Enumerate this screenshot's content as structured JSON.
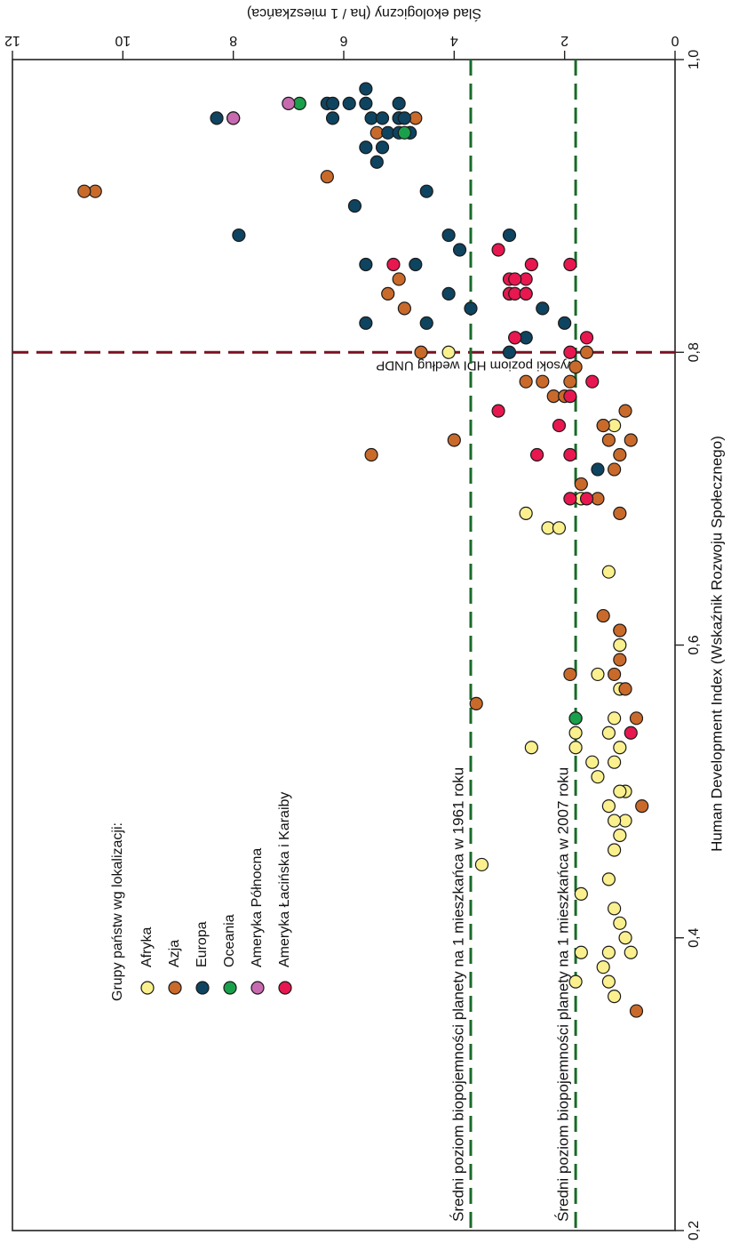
{
  "chart_data": {
    "type": "scatter",
    "orientation": "rotated 90 degrees clockwise (HDI axis along the right edge, footprint axis along the top)",
    "xlabel": "Human Development Index (Wskaźnik Rozwoju Społecznego)",
    "ylabel": "Ślad ekologiczny (ha / 1 mieszkańca)",
    "xlim": [
      0.2,
      1.0
    ],
    "ylim": [
      0,
      12
    ],
    "x_ticks": [
      "0,2",
      "0,4",
      "0,6",
      "0,8",
      "1,0"
    ],
    "y_ticks": [
      "0",
      "2",
      "4",
      "6",
      "8",
      "10",
      "12"
    ],
    "grid": false,
    "legend": {
      "title": "Grupy państw wg lokalizacji:",
      "placement": "lower-left of plot area (rotated)"
    },
    "series": [
      {
        "name": "Afryka",
        "color": "#fbf08e",
        "points": [
          [
            0.37,
            1.8
          ],
          [
            0.39,
            1.7
          ],
          [
            0.36,
            1.1
          ],
          [
            0.37,
            1.2
          ],
          [
            0.38,
            1.3
          ],
          [
            0.39,
            1.2
          ],
          [
            0.39,
            0.8
          ],
          [
            0.4,
            0.9
          ],
          [
            0.41,
            1.0
          ],
          [
            0.42,
            1.1
          ],
          [
            0.43,
            1.7
          ],
          [
            0.44,
            1.2
          ],
          [
            0.45,
            3.5
          ],
          [
            0.46,
            1.1
          ],
          [
            0.47,
            1.0
          ],
          [
            0.48,
            0.9
          ],
          [
            0.48,
            1.1
          ],
          [
            0.49,
            1.2
          ],
          [
            0.5,
            0.9
          ],
          [
            0.5,
            1.0
          ],
          [
            0.51,
            1.4
          ],
          [
            0.52,
            1.5
          ],
          [
            0.52,
            1.1
          ],
          [
            0.53,
            1.8
          ],
          [
            0.53,
            1.0
          ],
          [
            0.53,
            2.6
          ],
          [
            0.54,
            1.8
          ],
          [
            0.54,
            1.2
          ],
          [
            0.55,
            1.8
          ],
          [
            0.55,
            1.1
          ],
          [
            0.57,
            1.0
          ],
          [
            0.58,
            1.4
          ],
          [
            0.6,
            1.0
          ],
          [
            0.61,
            1.0
          ],
          [
            0.65,
            1.2
          ],
          [
            0.68,
            2.3
          ],
          [
            0.68,
            2.1
          ],
          [
            0.69,
            2.7
          ],
          [
            0.7,
            1.7
          ],
          [
            0.75,
            1.3
          ],
          [
            0.75,
            1.1
          ],
          [
            0.8,
            4.1
          ],
          [
            0.84,
            3.0
          ]
        ]
      },
      {
        "name": "Azja",
        "color": "#c96a2b",
        "points": [
          [
            0.35,
            0.7
          ],
          [
            0.49,
            0.6
          ],
          [
            0.55,
            0.7
          ],
          [
            0.56,
            3.6
          ],
          [
            0.57,
            0.9
          ],
          [
            0.58,
            1.1
          ],
          [
            0.58,
            1.9
          ],
          [
            0.59,
            1.0
          ],
          [
            0.61,
            1.0
          ],
          [
            0.62,
            1.3
          ],
          [
            0.69,
            1.0
          ],
          [
            0.7,
            1.4
          ],
          [
            0.71,
            1.7
          ],
          [
            0.72,
            1.1
          ],
          [
            0.73,
            5.5
          ],
          [
            0.73,
            1.0
          ],
          [
            0.74,
            4.0
          ],
          [
            0.74,
            0.8
          ],
          [
            0.74,
            1.2
          ],
          [
            0.75,
            1.3
          ],
          [
            0.76,
            0.9
          ],
          [
            0.77,
            2.2
          ],
          [
            0.77,
            2.0
          ],
          [
            0.78,
            2.7
          ],
          [
            0.78,
            2.4
          ],
          [
            0.78,
            1.9
          ],
          [
            0.79,
            1.8
          ],
          [
            0.8,
            1.6
          ],
          [
            0.81,
            2.9
          ],
          [
            0.81,
            2.7
          ],
          [
            0.8,
            4.6
          ],
          [
            0.83,
            4.9
          ],
          [
            0.84,
            5.2
          ],
          [
            0.85,
            5.0
          ],
          [
            0.92,
            6.3
          ],
          [
            0.95,
            4.8
          ],
          [
            0.95,
            5.4
          ],
          [
            0.96,
            5.0
          ],
          [
            0.96,
            4.7
          ],
          [
            0.91,
            10.5
          ],
          [
            0.91,
            10.7
          ]
        ]
      },
      {
        "name": "Europa",
        "color": "#0e4460",
        "points": [
          [
            0.72,
            1.4
          ],
          [
            0.8,
            3.0
          ],
          [
            0.81,
            2.7
          ],
          [
            0.82,
            4.5
          ],
          [
            0.82,
            5.6
          ],
          [
            0.82,
            2.0
          ],
          [
            0.83,
            3.7
          ],
          [
            0.83,
            2.4
          ],
          [
            0.84,
            4.1
          ],
          [
            0.84,
            2.7
          ],
          [
            0.86,
            5.6
          ],
          [
            0.86,
            4.7
          ],
          [
            0.87,
            3.9
          ],
          [
            0.88,
            4.1
          ],
          [
            0.88,
            3.0
          ],
          [
            0.88,
            7.9
          ],
          [
            0.9,
            5.8
          ],
          [
            0.91,
            4.5
          ],
          [
            0.93,
            5.4
          ],
          [
            0.94,
            5.3
          ],
          [
            0.94,
            5.6
          ],
          [
            0.95,
            4.8
          ],
          [
            0.96,
            5.0
          ],
          [
            0.96,
            5.5
          ],
          [
            0.96,
            5.3
          ],
          [
            0.96,
            4.9
          ],
          [
            0.96,
            6.2
          ],
          [
            0.97,
            5.0
          ],
          [
            0.97,
            6.3
          ],
          [
            0.97,
            6.2
          ],
          [
            0.97,
            5.9
          ],
          [
            0.95,
            5.2
          ],
          [
            0.96,
            8.0
          ],
          [
            0.96,
            8.3
          ],
          [
            0.97,
            5.6
          ],
          [
            0.95,
            5.0
          ],
          [
            0.98,
            5.6
          ]
        ]
      },
      {
        "name": "Oceania",
        "color": "#1aa04b",
        "points": [
          [
            0.97,
            6.8
          ],
          [
            0.95,
            4.9
          ],
          [
            0.55,
            1.8
          ]
        ]
      },
      {
        "name": "Ameryka Północna",
        "color": "#c86ab0",
        "points": [
          [
            0.96,
            8.0
          ],
          [
            0.97,
            7.0
          ]
        ]
      },
      {
        "name": "Ameryka Łacińska i Karaiby",
        "color": "#e8174f",
        "points": [
          [
            0.54,
            0.8
          ],
          [
            0.7,
            1.9
          ],
          [
            0.7,
            1.6
          ],
          [
            0.73,
            2.5
          ],
          [
            0.73,
            1.9
          ],
          [
            0.75,
            2.1
          ],
          [
            0.76,
            3.2
          ],
          [
            0.77,
            1.9
          ],
          [
            0.78,
            1.5
          ],
          [
            0.8,
            1.9
          ],
          [
            0.81,
            1.6
          ],
          [
            0.81,
            2.9
          ],
          [
            0.84,
            3.0
          ],
          [
            0.84,
            2.9
          ],
          [
            0.84,
            2.7
          ],
          [
            0.85,
            3.0
          ],
          [
            0.85,
            2.7
          ],
          [
            0.86,
            2.6
          ],
          [
            0.86,
            1.9
          ],
          [
            0.86,
            5.1
          ],
          [
            0.87,
            3.2
          ],
          [
            0.85,
            2.9
          ]
        ]
      }
    ],
    "annotations": [
      {
        "type": "vline",
        "orientation": "constant HDI",
        "value": 0.8,
        "color": "#7a1020",
        "label": "wysoki poziom HDI według UNDP"
      },
      {
        "type": "hline",
        "orientation": "constant footprint",
        "value": 3.7,
        "color": "#1a6a2a",
        "label": "Średni poziom biopojemności planety na 1 mieszkańca w 1961 roku"
      },
      {
        "type": "hline",
        "orientation": "constant footprint",
        "value": 1.8,
        "color": "#1a6a2a",
        "label": "Średni poziom biopojemności planety na 1 mieszkańca w 2007 roku"
      }
    ]
  }
}
